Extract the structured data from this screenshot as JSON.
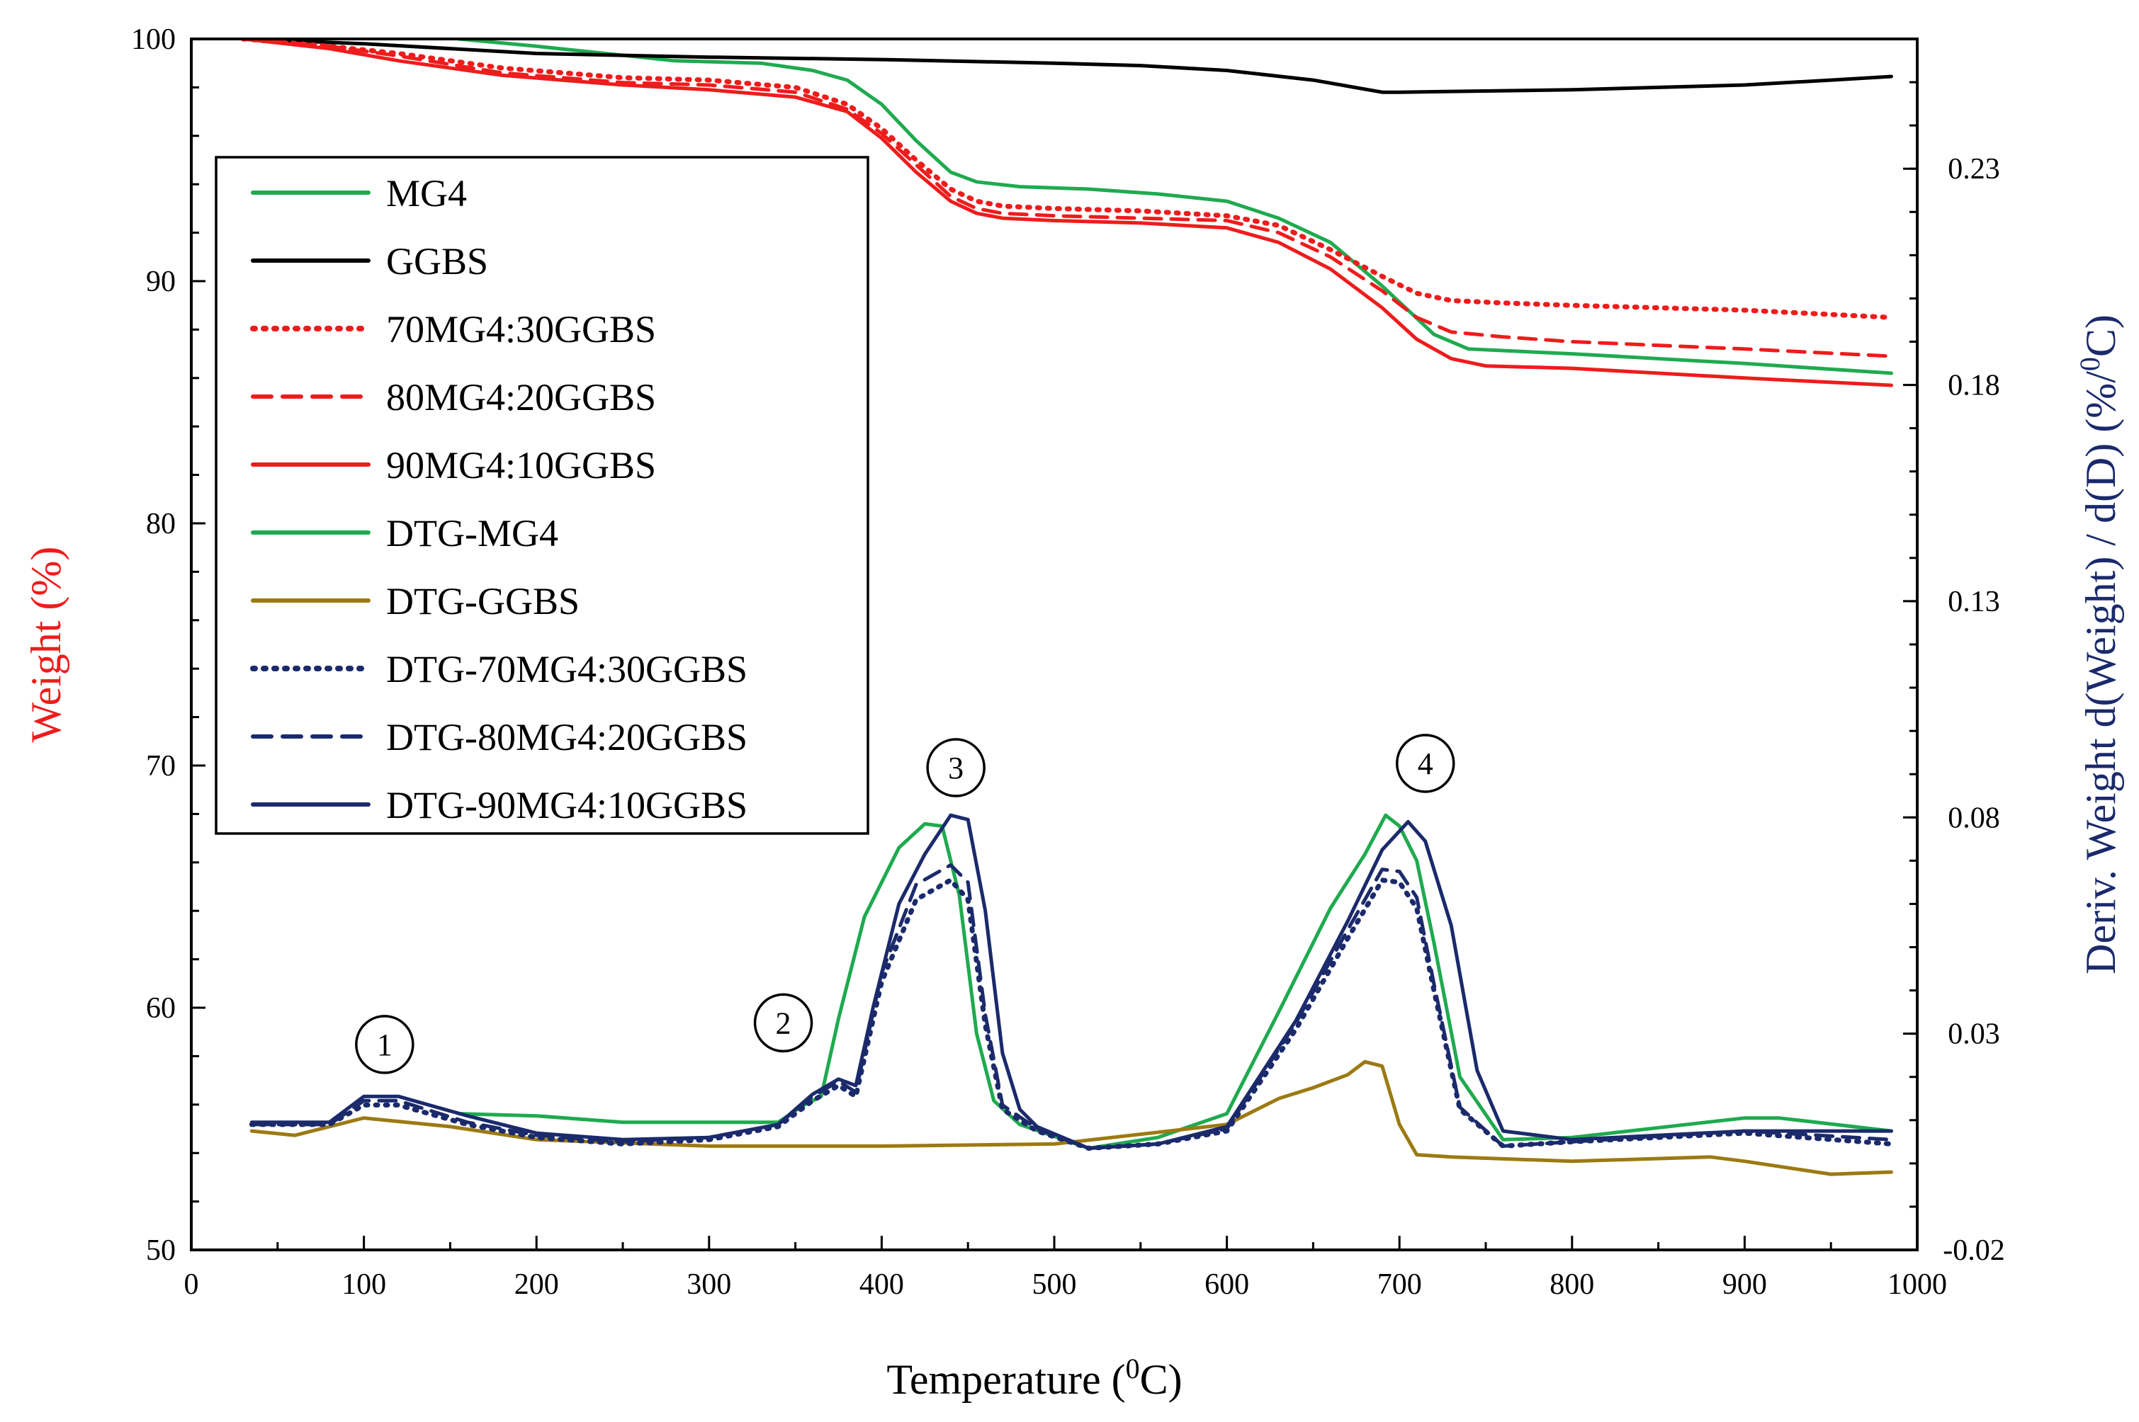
{
  "chart_data": {
    "type": "line",
    "title": "",
    "xlabel": "Temperature (",
    "xlabel_sup": "0",
    "xlabel_suffix": "C)",
    "ylabel_left": "Weight  (%)",
    "ylabel_right": "Deriv. Weight d(Weight) / d(D) (%/",
    "ylabel_right_sup": "0",
    "ylabel_right_suffix": "C)",
    "xlim": [
      0,
      1000
    ],
    "ylim_left": [
      50,
      100
    ],
    "ylim_right": [
      -0.02,
      0.26
    ],
    "x_ticks": [
      "0",
      "100",
      "200",
      "300",
      "400",
      "500",
      "600",
      "700",
      "800",
      "900",
      "1000"
    ],
    "y_left_ticks": [
      "50",
      "60",
      "70",
      "80",
      "90",
      "100"
    ],
    "y_right_ticks": [
      "-0.02",
      "0.03",
      "0.08",
      "0.13",
      "0.18",
      "0.23"
    ],
    "colors": {
      "green": "#1faa4f",
      "black": "#000000",
      "red": "#ee1c1c",
      "olive": "#9c7a12",
      "navy": "#1b2a6b",
      "left_axis_title": "#ee1c1c",
      "right_axis_title": "#1b2a6b"
    },
    "series": [
      {
        "name": "MG4",
        "axis": "left",
        "color": "#1faa4f",
        "dash": "solid",
        "x": [
          155,
          200,
          280,
          330,
          360,
          380,
          400,
          420,
          440,
          455,
          480,
          520,
          560,
          600,
          630,
          660,
          690,
          720,
          740,
          800,
          900,
          985
        ],
        "values": [
          100,
          99.7,
          99.1,
          99.0,
          98.7,
          98.3,
          97.3,
          95.8,
          94.5,
          94.1,
          93.9,
          93.8,
          93.6,
          93.3,
          92.6,
          91.6,
          89.8,
          87.8,
          87.2,
          87.0,
          86.6,
          86.2
        ]
      },
      {
        "name": "GGBS",
        "axis": "left",
        "color": "#000000",
        "dash": "solid",
        "x": [
          30,
          100,
          200,
          300,
          400,
          500,
          550,
          600,
          650,
          690,
          700,
          750,
          800,
          850,
          900,
          950,
          985
        ],
        "values": [
          100,
          99.8,
          99.4,
          99.25,
          99.15,
          99.0,
          98.9,
          98.7,
          98.3,
          97.8,
          97.8,
          97.85,
          97.9,
          98.0,
          98.1,
          98.3,
          98.45
        ]
      },
      {
        "name": "70MG4:30GGBS",
        "axis": "left",
        "color": "#ee1c1c",
        "dash": "dotted",
        "x": [
          30,
          80,
          120,
          180,
          250,
          300,
          350,
          380,
          400,
          420,
          440,
          455,
          470,
          500,
          550,
          600,
          630,
          660,
          690,
          710,
          730,
          760,
          800,
          900,
          985
        ],
        "values": [
          100,
          99.7,
          99.4,
          98.8,
          98.4,
          98.3,
          98.0,
          97.3,
          96.3,
          95.0,
          93.8,
          93.3,
          93.1,
          93.0,
          92.9,
          92.7,
          92.3,
          91.3,
          90.2,
          89.5,
          89.2,
          89.1,
          89.0,
          88.8,
          88.5
        ]
      },
      {
        "name": "80MG4:20GGBS",
        "axis": "left",
        "color": "#ee1c1c",
        "dash": "dashed",
        "x": [
          30,
          80,
          120,
          180,
          250,
          300,
          350,
          380,
          400,
          420,
          440,
          455,
          470,
          500,
          550,
          600,
          630,
          660,
          690,
          710,
          730,
          760,
          800,
          900,
          985
        ],
        "values": [
          100,
          99.7,
          99.3,
          98.6,
          98.2,
          98.1,
          97.8,
          97.1,
          96.1,
          94.8,
          93.5,
          93.0,
          92.8,
          92.7,
          92.6,
          92.5,
          92.0,
          91.0,
          89.6,
          88.5,
          87.9,
          87.7,
          87.5,
          87.2,
          86.9
        ]
      },
      {
        "name": "90MG4:10GGBS",
        "axis": "left",
        "color": "#ee1c1c",
        "dash": "solid",
        "x": [
          30,
          80,
          120,
          180,
          250,
          300,
          350,
          380,
          400,
          420,
          440,
          455,
          470,
          500,
          550,
          600,
          630,
          660,
          690,
          710,
          730,
          750,
          800,
          900,
          985
        ],
        "values": [
          100,
          99.6,
          99.1,
          98.5,
          98.1,
          97.9,
          97.6,
          97.0,
          95.9,
          94.5,
          93.3,
          92.8,
          92.6,
          92.5,
          92.4,
          92.2,
          91.6,
          90.5,
          88.9,
          87.6,
          86.8,
          86.5,
          86.4,
          86.0,
          85.7
        ]
      },
      {
        "name": "DTG-MG4",
        "axis": "right",
        "color": "#1faa4f",
        "dash": "solid",
        "x": [
          155,
          200,
          250,
          300,
          340,
          355,
          365,
          375,
          390,
          410,
          425,
          435,
          445,
          455,
          465,
          480,
          520,
          560,
          600,
          630,
          660,
          680,
          692,
          700,
          710,
          720,
          735,
          760,
          800,
          900,
          920,
          985
        ],
        "values": [
          0.0115,
          0.011,
          0.0095,
          0.0095,
          0.0095,
          0.0135,
          0.0155,
          0.0335,
          0.057,
          0.073,
          0.0785,
          0.078,
          0.062,
          0.03,
          0.0145,
          0.009,
          0.0035,
          0.006,
          0.0115,
          0.035,
          0.059,
          0.0715,
          0.0805,
          0.078,
          0.07,
          0.051,
          0.02,
          0.0055,
          0.006,
          0.0105,
          0.0105,
          0.0075
        ]
      },
      {
        "name": "DTG-GGBS",
        "axis": "right",
        "color": "#9c7a12",
        "dash": "solid",
        "x": [
          35,
          60,
          100,
          150,
          200,
          300,
          400,
          500,
          600,
          630,
          650,
          670,
          680,
          690,
          700,
          710,
          730,
          800,
          880,
          900,
          950,
          985
        ],
        "values": [
          0.0075,
          0.0065,
          0.0105,
          0.0085,
          0.0055,
          0.004,
          0.004,
          0.0045,
          0.009,
          0.015,
          0.0175,
          0.0205,
          0.0235,
          0.0225,
          0.009,
          0.002,
          0.0015,
          0.0005,
          0.0015,
          0.0005,
          -0.0025,
          -0.002
        ]
      },
      {
        "name": "DTG-70MG4:30GGBS",
        "axis": "right",
        "color": "#1b2a6b",
        "dash": "dotted",
        "x": [
          35,
          80,
          100,
          120,
          160,
          200,
          250,
          300,
          340,
          360,
          375,
          385,
          400,
          420,
          440,
          450,
          460,
          470,
          490,
          520,
          560,
          600,
          640,
          670,
          690,
          700,
          710,
          720,
          735,
          760,
          800,
          900,
          985
        ],
        "values": [
          0.009,
          0.009,
          0.0135,
          0.0135,
          0.009,
          0.006,
          0.0045,
          0.0055,
          0.0085,
          0.0145,
          0.018,
          0.0155,
          0.042,
          0.061,
          0.0655,
          0.061,
          0.032,
          0.0125,
          0.0075,
          0.0035,
          0.0045,
          0.0075,
          0.031,
          0.052,
          0.0655,
          0.065,
          0.059,
          0.04,
          0.0125,
          0.004,
          0.005,
          0.007,
          0.0045
        ]
      },
      {
        "name": "DTG-80MG4:20GGBS",
        "axis": "right",
        "color": "#1b2a6b",
        "dash": "dashed",
        "x": [
          35,
          80,
          100,
          120,
          160,
          200,
          250,
          300,
          340,
          360,
          375,
          385,
          400,
          420,
          440,
          450,
          460,
          470,
          490,
          520,
          560,
          600,
          640,
          670,
          690,
          700,
          710,
          720,
          735,
          760,
          800,
          900,
          985
        ],
        "values": [
          0.009,
          0.009,
          0.0145,
          0.0145,
          0.0095,
          0.0065,
          0.005,
          0.006,
          0.009,
          0.0155,
          0.019,
          0.0165,
          0.044,
          0.0645,
          0.069,
          0.065,
          0.0345,
          0.0135,
          0.008,
          0.0035,
          0.0045,
          0.008,
          0.0325,
          0.054,
          0.068,
          0.0675,
          0.0615,
          0.0415,
          0.013,
          0.004,
          0.005,
          0.0075,
          0.0055
        ]
      },
      {
        "name": "DTG-90MG4:10GGBS",
        "axis": "right",
        "color": "#1b2a6b",
        "dash": "solid",
        "x": [
          35,
          80,
          100,
          120,
          160,
          200,
          250,
          300,
          340,
          360,
          375,
          385,
          395,
          410,
          425,
          440,
          450,
          460,
          470,
          480,
          490,
          520,
          560,
          600,
          640,
          670,
          690,
          705,
          715,
          730,
          745,
          760,
          800,
          900,
          985
        ],
        "values": [
          0.0095,
          0.0095,
          0.0155,
          0.0155,
          0.011,
          0.007,
          0.0055,
          0.006,
          0.009,
          0.016,
          0.0195,
          0.018,
          0.036,
          0.06,
          0.0715,
          0.0805,
          0.0795,
          0.0585,
          0.0255,
          0.0125,
          0.0085,
          0.0035,
          0.0045,
          0.0085,
          0.033,
          0.056,
          0.0725,
          0.079,
          0.0745,
          0.055,
          0.0215,
          0.0075,
          0.0055,
          0.0075,
          0.0075
        ]
      }
    ],
    "legend_placement": "upper-left",
    "annotations": [
      {
        "label": "1",
        "x": 112,
        "y": 0.0275
      },
      {
        "label": "2",
        "x": 343,
        "y": 0.0325
      },
      {
        "label": "3",
        "x": 443,
        "y": 0.0915
      },
      {
        "label": "4",
        "x": 715,
        "y": 0.0925
      }
    ]
  }
}
